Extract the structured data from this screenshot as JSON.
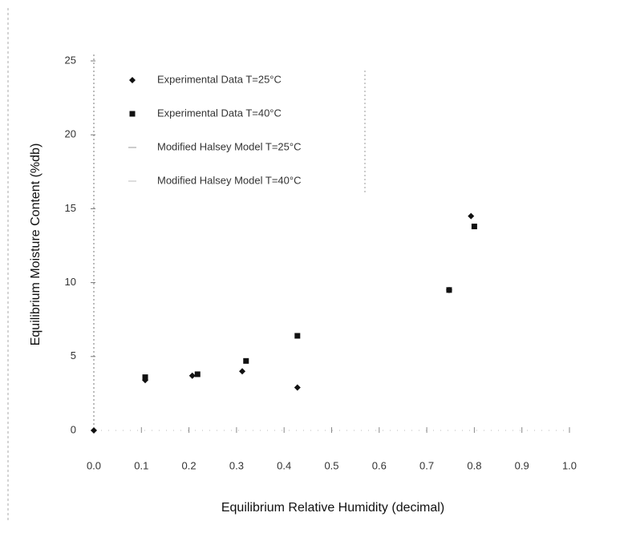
{
  "chart_data": {
    "type": "scatter",
    "x_label": "Equilibrium Relative Humidity (decimal)",
    "y_label": "Equilibrium Moisture Content (%db)",
    "xlim": [
      0,
      1
    ],
    "ylim": [
      0,
      25
    ],
    "xticks": [
      {
        "value": 0,
        "label": "0.0"
      },
      0.1,
      0.2,
      0.3,
      0.4,
      0.5,
      0.6,
      0.7,
      0.8,
      0.9,
      {
        "value": 1,
        "label": "1.0"
      }
    ],
    "yticks": [
      0,
      5,
      10,
      15,
      20,
      25
    ],
    "series": [
      {
        "name": "Experimental Data T=25°C",
        "color": "#111111",
        "marker": "diamond",
        "x": [
          0,
          0.108,
          0.207,
          0.312,
          0.428,
          0.747,
          0.793
        ],
        "values": [
          0,
          3.4,
          3.7,
          4.0,
          2.9,
          9.5,
          14.5
        ]
      },
      {
        "name": "Experimental Data T=40°C",
        "color": "#111111",
        "marker": "square",
        "x": [
          0.108,
          0.218,
          0.32,
          0.428,
          0.747,
          0.8
        ],
        "values": [
          3.6,
          3.8,
          4.7,
          6.4,
          9.5,
          13.8
        ]
      },
      {
        "name": "Modified Halsey Model T=25°C",
        "color": "#999999",
        "marker": "line"
      },
      {
        "name": "Modified Halsey Model T=40°C",
        "color": "#bbbbbb",
        "marker": "line"
      }
    ]
  }
}
